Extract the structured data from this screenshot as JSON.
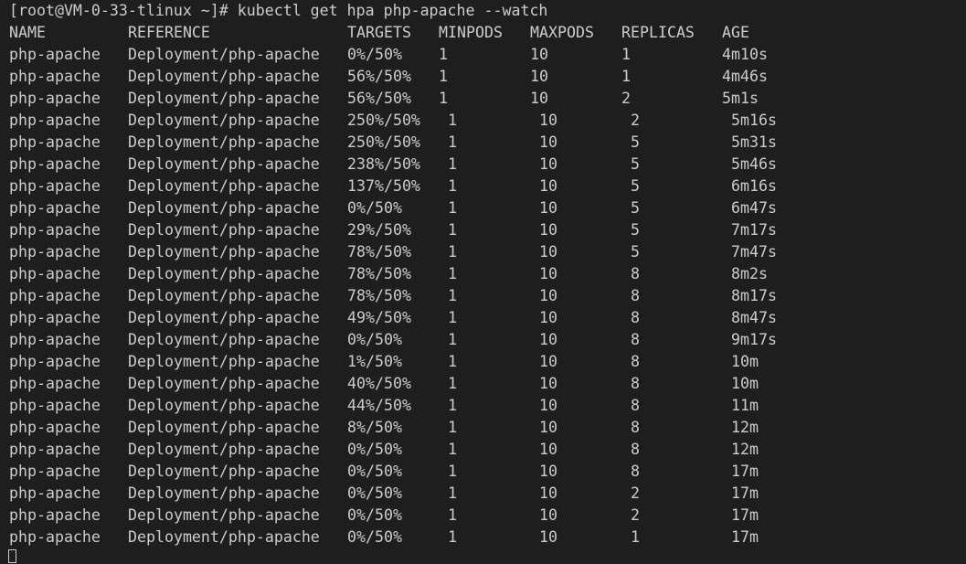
{
  "terminal": {
    "command_line": "[root@VM-0-33-tlinux ~]# kubectl get hpa php-apache --watch",
    "headers": [
      "NAME",
      "REFERENCE",
      "TARGETS",
      "MINPODS",
      "MAXPODS",
      "REPLICAS",
      "AGE"
    ],
    "rows": [
      [
        "php-apache",
        "Deployment/php-apache",
        "0%/50%",
        "1",
        "10",
        "1",
        "4m10s"
      ],
      [
        "php-apache",
        "Deployment/php-apache",
        "56%/50%",
        "1",
        "10",
        "1",
        "4m46s"
      ],
      [
        "php-apache",
        "Deployment/php-apache",
        "56%/50%",
        "1",
        "10",
        "2",
        "5m1s"
      ],
      [
        "php-apache",
        "Deployment/php-apache",
        "250%/50%",
        "1",
        "10",
        "2",
        "5m16s"
      ],
      [
        "php-apache",
        "Deployment/php-apache",
        "250%/50%",
        "1",
        "10",
        "5",
        "5m31s"
      ],
      [
        "php-apache",
        "Deployment/php-apache",
        "238%/50%",
        "1",
        "10",
        "5",
        "5m46s"
      ],
      [
        "php-apache",
        "Deployment/php-apache",
        "137%/50%",
        "1",
        "10",
        "5",
        "6m16s"
      ],
      [
        "php-apache",
        "Deployment/php-apache",
        "0%/50%",
        "1",
        "10",
        "5",
        "6m47s"
      ],
      [
        "php-apache",
        "Deployment/php-apache",
        "29%/50%",
        "1",
        "10",
        "5",
        "7m17s"
      ],
      [
        "php-apache",
        "Deployment/php-apache",
        "78%/50%",
        "1",
        "10",
        "5",
        "7m47s"
      ],
      [
        "php-apache",
        "Deployment/php-apache",
        "78%/50%",
        "1",
        "10",
        "8",
        "8m2s"
      ],
      [
        "php-apache",
        "Deployment/php-apache",
        "78%/50%",
        "1",
        "10",
        "8",
        "8m17s"
      ],
      [
        "php-apache",
        "Deployment/php-apache",
        "49%/50%",
        "1",
        "10",
        "8",
        "8m47s"
      ],
      [
        "php-apache",
        "Deployment/php-apache",
        "0%/50%",
        "1",
        "10",
        "8",
        "9m17s"
      ],
      [
        "php-apache",
        "Deployment/php-apache",
        "1%/50%",
        "1",
        "10",
        "8",
        "10m"
      ],
      [
        "php-apache",
        "Deployment/php-apache",
        "40%/50%",
        "1",
        "10",
        "8",
        "10m"
      ],
      [
        "php-apache",
        "Deployment/php-apache",
        "44%/50%",
        "1",
        "10",
        "8",
        "11m"
      ],
      [
        "php-apache",
        "Deployment/php-apache",
        "8%/50%",
        "1",
        "10",
        "8",
        "12m"
      ],
      [
        "php-apache",
        "Deployment/php-apache",
        "0%/50%",
        "1",
        "10",
        "8",
        "12m"
      ],
      [
        "php-apache",
        "Deployment/php-apache",
        "0%/50%",
        "1",
        "10",
        "8",
        "17m"
      ],
      [
        "php-apache",
        "Deployment/php-apache",
        "0%/50%",
        "1",
        "10",
        "2",
        "17m"
      ],
      [
        "php-apache",
        "Deployment/php-apache",
        "0%/50%",
        "1",
        "10",
        "2",
        "17m"
      ],
      [
        "php-apache",
        "Deployment/php-apache",
        "0%/50%",
        "1",
        "10",
        "1",
        "17m"
      ]
    ],
    "colors": {
      "background": "#1e1e1e",
      "foreground": "#cccccc"
    }
  }
}
